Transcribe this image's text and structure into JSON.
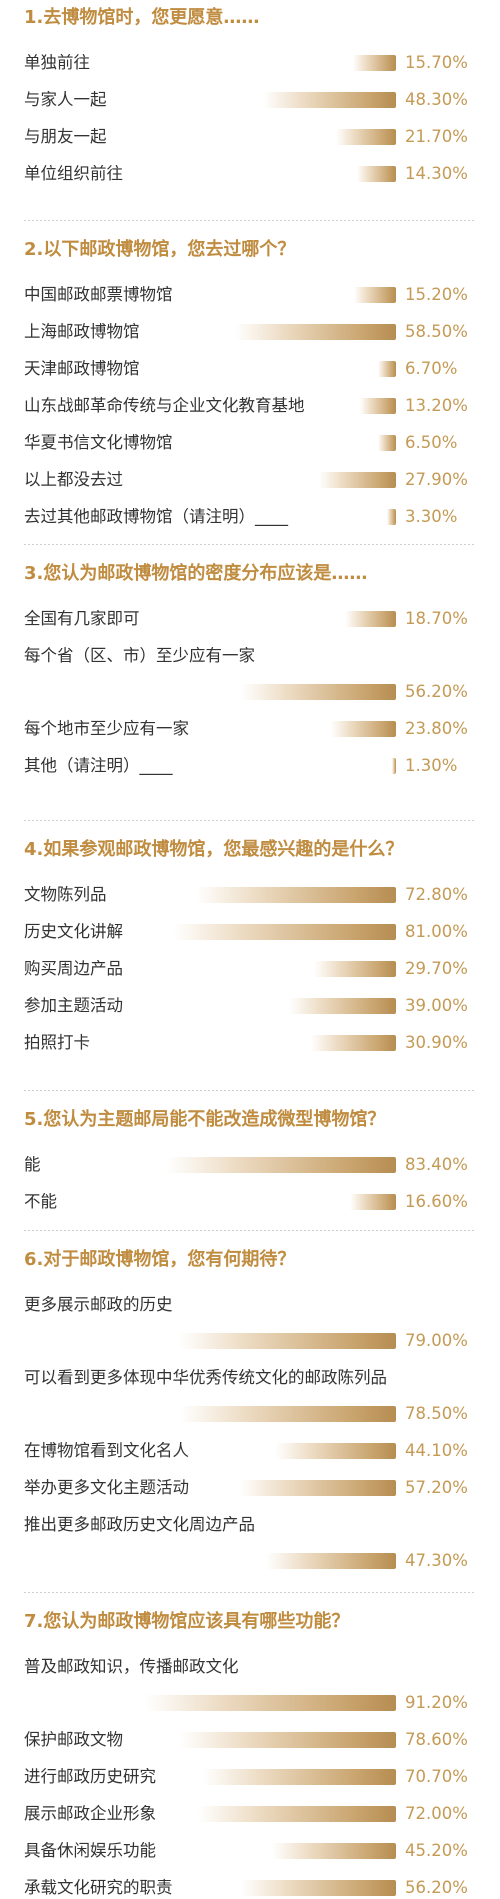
{
  "colors": {
    "title": "#c08c40",
    "label": "#333333",
    "value": "#c49a55",
    "bar_dark": "#b68d52",
    "bar_light": "#eddcc4"
  },
  "chart_data": [
    {
      "type": "bar",
      "title": "1.去博物馆时，您更愿意……",
      "categories": [
        "单独前往",
        "与家人一起",
        "与朋友一起",
        "单位组织前往"
      ],
      "values": [
        15.7,
        48.3,
        21.7,
        14.3
      ],
      "value_labels": [
        "15.70%",
        "48.30%",
        "21.70%",
        "14.30%"
      ]
    },
    {
      "type": "bar",
      "title": "2.以下邮政博物馆，您去过哪个？",
      "categories": [
        "中国邮政邮票博物馆",
        "上海邮政博物馆",
        "天津邮政博物馆",
        "山东战邮革命传统与企业文化教育基地",
        "华夏书信文化博物馆",
        "以上都没去过",
        "去过其他邮政博物馆（请注明）____"
      ],
      "values": [
        15.2,
        58.5,
        6.7,
        13.2,
        6.5,
        27.9,
        3.3
      ],
      "value_labels": [
        "15.20%",
        "58.50%",
        "6.70%",
        "13.20%",
        "6.50%",
        "27.90%",
        "3.30%"
      ]
    },
    {
      "type": "bar",
      "title": "3.您认为邮政博物馆的密度分布应该是……",
      "categories": [
        "全国有几家即可",
        "每个省（区、市）至少应有一家",
        "每个地市至少应有一家",
        "其他（请注明）____"
      ],
      "values": [
        18.7,
        56.2,
        23.8,
        1.3
      ],
      "value_labels": [
        "18.70%",
        "56.20%",
        "23.80%",
        "1.30%"
      ]
    },
    {
      "type": "bar",
      "title": "4.如果参观邮政博物馆，您最感兴趣的是什么？",
      "categories": [
        "文物陈列品",
        "历史文化讲解",
        "购买周边产品",
        "参加主题活动",
        "拍照打卡"
      ],
      "values": [
        72.8,
        81.0,
        29.7,
        39.0,
        30.9
      ],
      "value_labels": [
        "72.80%",
        "81.00%",
        "29.70%",
        "39.00%",
        "30.90%"
      ]
    },
    {
      "type": "bar",
      "title": "5.您认为主题邮局能不能改造成微型博物馆？",
      "categories": [
        "能",
        "不能"
      ],
      "values": [
        83.4,
        16.6
      ],
      "value_labels": [
        "83.40%",
        "16.60%"
      ]
    },
    {
      "type": "bar",
      "title": "6.对于邮政博物馆，您有何期待？",
      "categories": [
        "更多展示邮政的历史",
        "可以看到更多体现中华优秀传统文化的邮政陈列品",
        "在博物馆看到文化名人",
        "举办更多文化主题活动",
        "推出更多邮政历史文化周边产品"
      ],
      "values": [
        79.0,
        78.5,
        44.1,
        57.2,
        47.3
      ],
      "value_labels": [
        "79.00%",
        "78.50%",
        "44.10%",
        "57.20%",
        "47.30%"
      ]
    },
    {
      "type": "bar",
      "title": "7.您认为邮政博物馆应该具有哪些功能？",
      "categories": [
        "普及邮政知识，传播邮政文化",
        "保护邮政文物",
        "进行邮政历史研究",
        "展示邮政企业形象",
        "具备休闲娱乐功能",
        "承载文化研究的职责"
      ],
      "values": [
        91.2,
        78.6,
        70.7,
        72.0,
        45.2,
        56.2
      ],
      "value_labels": [
        "91.20%",
        "78.60%",
        "70.70%",
        "72.00%",
        "45.20%",
        "56.20%"
      ]
    }
  ]
}
